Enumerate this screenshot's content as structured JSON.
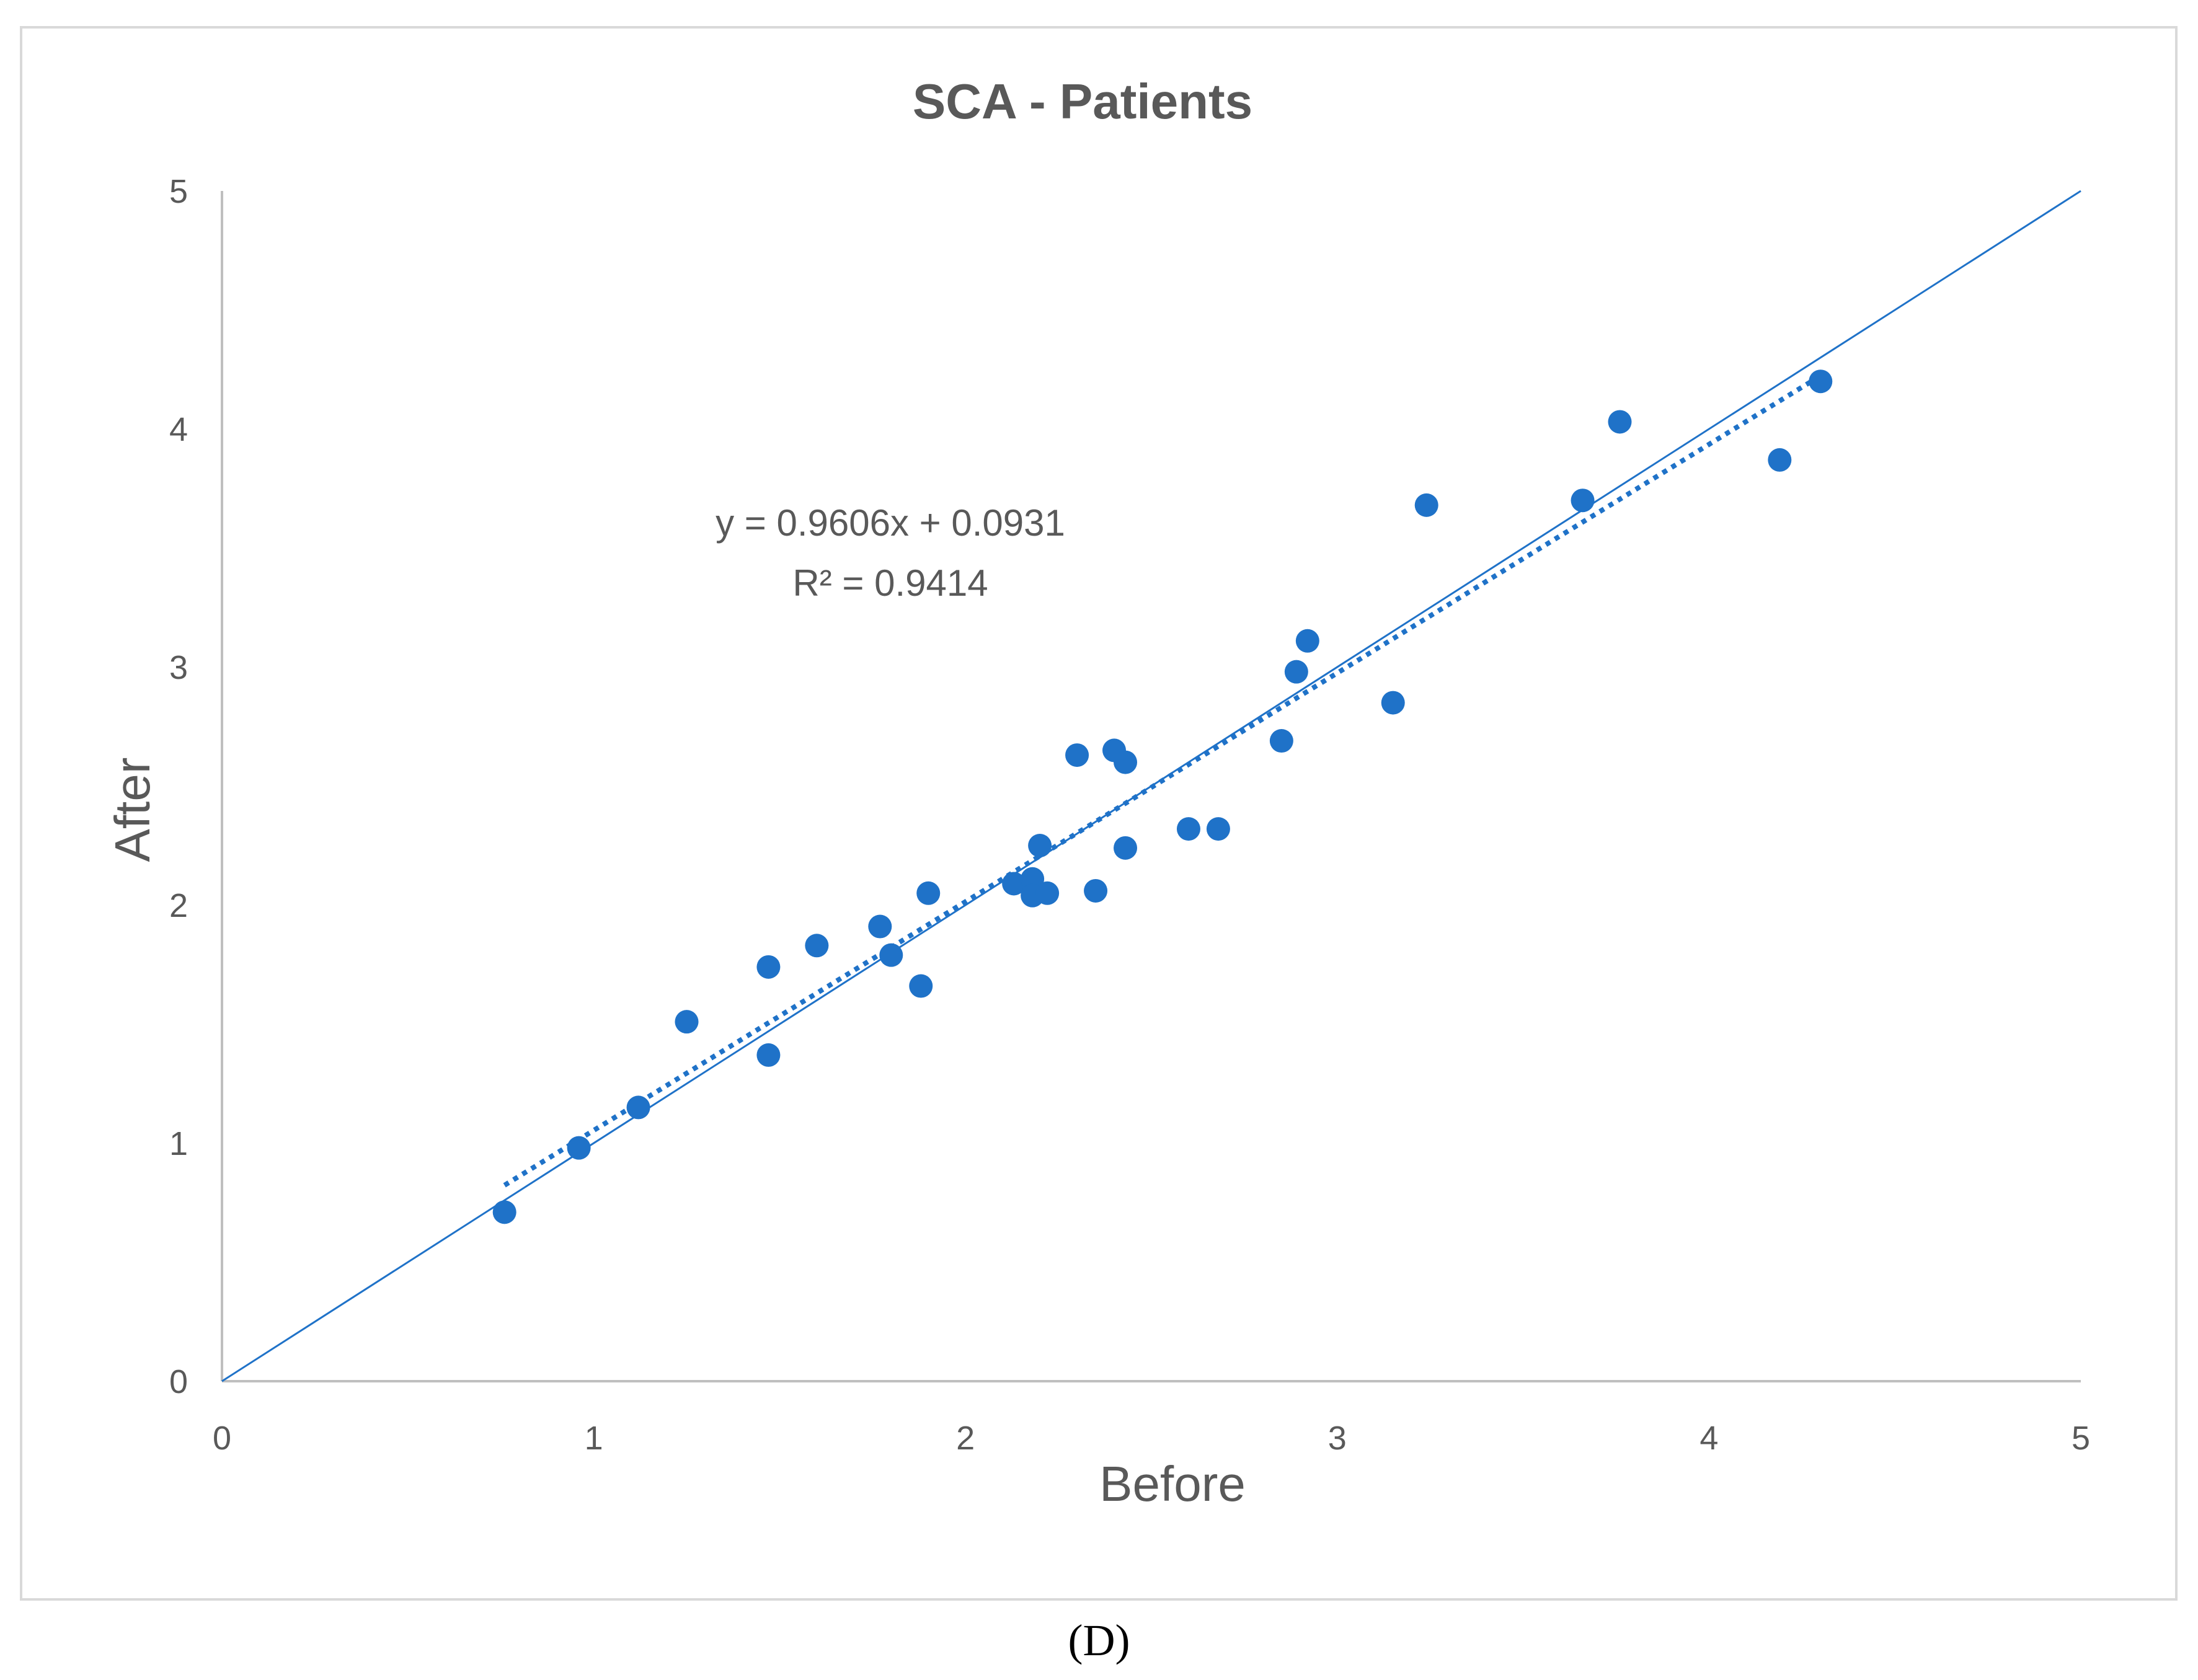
{
  "panel_label": "(D)",
  "chart_data": {
    "type": "scatter",
    "title": "SCA - Patients",
    "xlabel": "Before",
    "ylabel": "After",
    "xlim": [
      0,
      5
    ],
    "ylim": [
      0,
      5
    ],
    "xticks": [
      "0",
      "1",
      "2",
      "3",
      "4",
      "5"
    ],
    "yticks": [
      "0",
      "1",
      "2",
      "3",
      "4",
      "5"
    ],
    "grid": false,
    "legend": "none",
    "series": [
      {
        "name": "Patients",
        "color": "#1f72c8",
        "points": [
          [
            0.76,
            0.71
          ],
          [
            0.96,
            0.98
          ],
          [
            1.12,
            1.15
          ],
          [
            1.25,
            1.51
          ],
          [
            1.47,
            1.37
          ],
          [
            1.47,
            1.74
          ],
          [
            1.6,
            1.83
          ],
          [
            1.77,
            1.91
          ],
          [
            1.8,
            1.79
          ],
          [
            1.88,
            1.66
          ],
          [
            1.9,
            2.05
          ],
          [
            2.13,
            2.09
          ],
          [
            2.18,
            2.11
          ],
          [
            2.18,
            2.04
          ],
          [
            2.2,
            2.25
          ],
          [
            2.22,
            2.05
          ],
          [
            2.3,
            2.63
          ],
          [
            2.35,
            2.06
          ],
          [
            2.4,
            2.65
          ],
          [
            2.43,
            2.6
          ],
          [
            2.43,
            2.24
          ],
          [
            2.6,
            2.32
          ],
          [
            2.68,
            2.32
          ],
          [
            2.85,
            2.69
          ],
          [
            2.89,
            2.98
          ],
          [
            2.92,
            3.11
          ],
          [
            3.15,
            2.85
          ],
          [
            3.24,
            3.68
          ],
          [
            3.66,
            3.7
          ],
          [
            3.76,
            4.03
          ],
          [
            4.19,
            3.87
          ],
          [
            4.3,
            4.2
          ]
        ]
      }
    ],
    "reference_line": {
      "name": "y = x",
      "from": [
        0,
        0
      ],
      "to": [
        5,
        5
      ],
      "style": "solid",
      "color": "#1f72c8"
    },
    "trendline": {
      "type": "linear",
      "slope": 0.9606,
      "intercept": 0.0931,
      "x_range": [
        0.76,
        4.3
      ],
      "style": "dotted",
      "color": "#1f72c8",
      "equation_label": "y = 0.9606x + 0.0931",
      "r2_label": "R² = 0.9414"
    }
  }
}
